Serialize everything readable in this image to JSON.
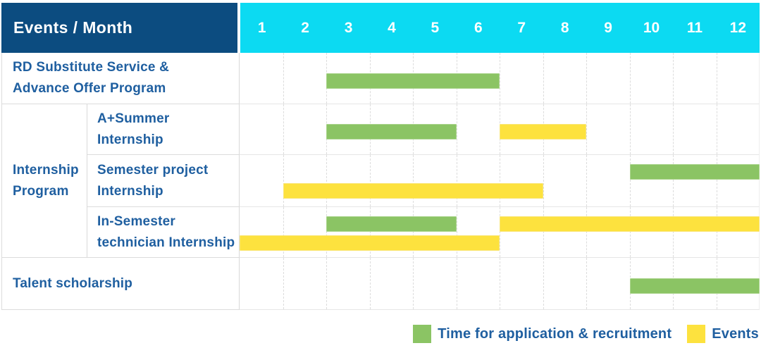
{
  "header": {
    "title": "Events / Month",
    "months": [
      "1",
      "2",
      "3",
      "4",
      "5",
      "6",
      "7",
      "8",
      "9",
      "10",
      "11",
      "12"
    ]
  },
  "group_label": {
    "text": "Internship Program",
    "lines": [
      "Internship",
      "Program"
    ]
  },
  "legend": [
    {
      "key": "application",
      "label": "Time for application & recruitment",
      "color": "#8bc464"
    },
    {
      "key": "events",
      "label": "Events",
      "color": "#fde23e"
    }
  ],
  "colors": {
    "corner_header_bg": "#0c4c80",
    "month_header_bg": "#0cdaf2",
    "header_text": "#ffffff",
    "label_text": "#1f5fa0",
    "green_bar": "#8bc464",
    "green_bar_border": "#aad48c",
    "yellow_bar": "#fde23e",
    "yellow_bar_border": "#f9e678"
  },
  "chart_data": {
    "type": "table",
    "subtype": "gantt",
    "title": "Events / Month",
    "unit": "month",
    "x_range": [
      1,
      12
    ],
    "x_ticks": [
      "1",
      "2",
      "3",
      "4",
      "5",
      "6",
      "7",
      "8",
      "9",
      "10",
      "11",
      "12"
    ],
    "legend_position": "bottom-right",
    "grid": "dashed-vertical-month-lines",
    "series_meaning": {
      "green": "Time for application & recruitment",
      "yellow": "Events"
    },
    "rows": [
      {
        "label": "RD Substitute Service & Advance Offer Program",
        "label_lines": [
          "RD Substitute Service &",
          "Advance Offer Program"
        ],
        "group": null,
        "layout": "single",
        "bars": [
          {
            "type": "application",
            "color": "green",
            "start_month": 3,
            "end_month": 6,
            "line": 0
          }
        ]
      },
      {
        "label": "A+Summer Internship",
        "label_lines": [
          "A+Summer",
          "Internship"
        ],
        "group": "Internship Program",
        "layout": "single",
        "bars": [
          {
            "type": "application",
            "color": "green",
            "start_month": 3,
            "end_month": 5,
            "line": 0
          },
          {
            "type": "events",
            "color": "yellow",
            "start_month": 7,
            "end_month": 8,
            "line": 0
          }
        ]
      },
      {
        "label": "Semester project Internship",
        "label_lines": [
          "Semester project",
          "Internship"
        ],
        "group": "Internship Program",
        "layout": "double",
        "bars": [
          {
            "type": "application",
            "color": "green",
            "start_month": 10,
            "end_month": 12,
            "line": 0
          },
          {
            "type": "events",
            "color": "yellow",
            "start_month": 2,
            "end_month": 7,
            "line": 1
          }
        ]
      },
      {
        "label": "In-Semester technician Internship",
        "label_lines": [
          "In-Semester",
          "technician Internship"
        ],
        "group": "Internship Program",
        "layout": "double",
        "bars": [
          {
            "type": "application",
            "color": "green",
            "start_month": 3,
            "end_month": 5,
            "line": 0
          },
          {
            "type": "events",
            "color": "yellow",
            "start_month": 7,
            "end_month": 12,
            "line": 0
          },
          {
            "type": "events",
            "color": "yellow",
            "start_month": 1,
            "end_month": 6,
            "line": 1
          }
        ]
      },
      {
        "label": "Talent scholarship",
        "label_lines": [
          "Talent scholarship"
        ],
        "group": null,
        "layout": "single",
        "bars": [
          {
            "type": "application",
            "color": "green",
            "start_month": 10,
            "end_month": 12,
            "line": 0
          }
        ]
      }
    ]
  }
}
